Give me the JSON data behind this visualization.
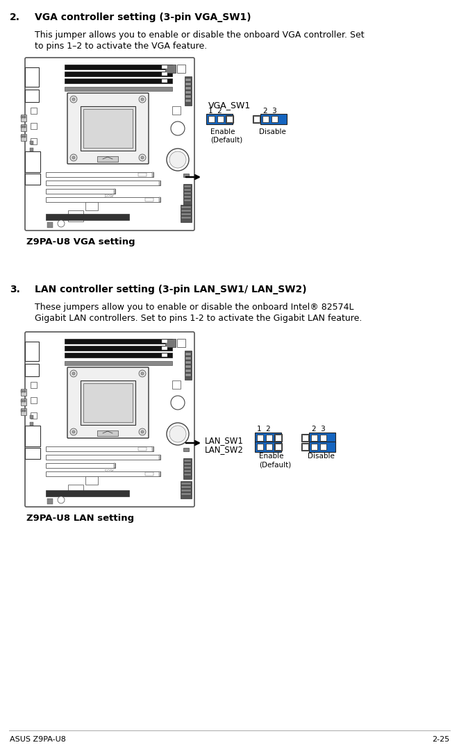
{
  "bg_color": "#ffffff",
  "section2_num": "2.",
  "section2_heading": "VGA controller setting (3-pin VGA_SW1)",
  "section2_body_line1": "This jumper allows you to enable or disable the onboard VGA controller. Set",
  "section2_body_line2": "to pins 1–2 to activate the VGA feature.",
  "section2_diagram_label": "Z9PA-U8 VGA setting",
  "vga_sw1_label": "VGA_SW1",
  "vga_enable_pin_label": "1  2",
  "vga_disable_pin_label": "2  3",
  "vga_enable_text_line1": "Enable",
  "vga_enable_text_line2": "(Default)",
  "vga_disable_text": "Disable",
  "section3_num": "3.",
  "section3_heading": "LAN controller setting (3-pin LAN_SW1/ LAN_SW2)",
  "section3_body_line1": "These jumpers allow you to enable or disable the onboard Intel® 82574L",
  "section3_body_line2": "Gigabit LAN controllers. Set to pins 1-2 to activate the Gigabit LAN feature.",
  "section3_diagram_label": "Z9PA-U8 LAN setting",
  "lan_sw1_label": "LAN_SW1",
  "lan_sw2_label": "LAN_SW2",
  "lan_enable_pin_label": "1  2",
  "lan_disable_pin_label": "2  3",
  "lan_enable_text_line1": "Enable",
  "lan_enable_text_line2": "(Default)",
  "lan_disable_text": "Disable",
  "footer_left": "ASUS Z9PA-U8",
  "footer_right": "2-25",
  "blue_color": "#1565C0",
  "white_color": "#ffffff",
  "black_color": "#000000",
  "gray_color": "#888888",
  "board_bg": "#ffffff",
  "board_border": "#000000"
}
